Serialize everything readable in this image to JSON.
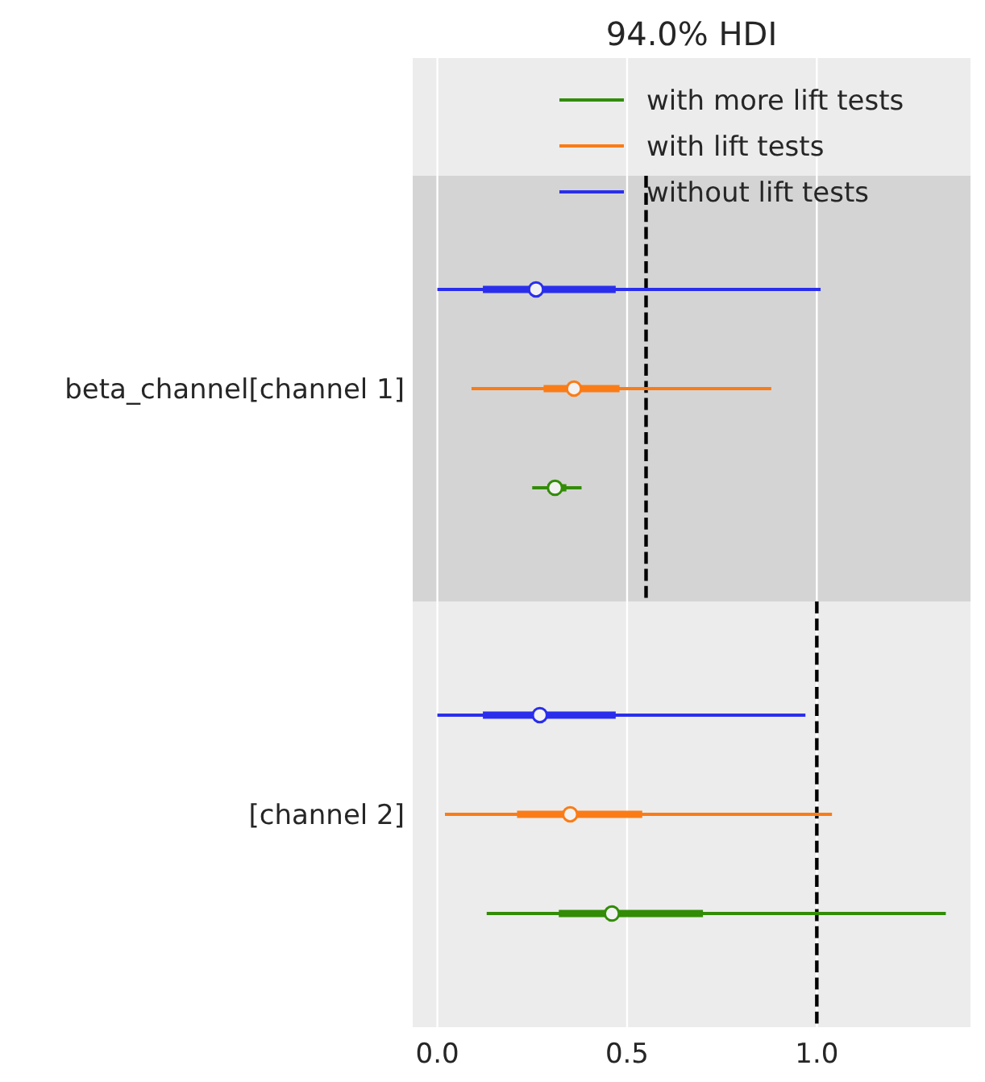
{
  "chart_data": {
    "type": "box",
    "title": "94.0% HDI",
    "orientation": "horizontal",
    "categories": [
      "beta_channel[channel 1]",
      "[channel 2]"
    ],
    "series": [
      {
        "name": "with more lift tests",
        "color": "#328c06",
        "boxes": [
          {
            "low": 0.25,
            "q1": 0.29,
            "median": 0.31,
            "q3": 0.34,
            "high": 0.38
          },
          {
            "low": 0.13,
            "q1": 0.32,
            "median": 0.46,
            "q3": 0.7,
            "high": 1.34
          }
        ]
      },
      {
        "name": "with lift tests",
        "color": "#fa7c17",
        "boxes": [
          {
            "low": 0.09,
            "q1": 0.28,
            "median": 0.36,
            "q3": 0.48,
            "high": 0.88
          },
          {
            "low": 0.02,
            "q1": 0.21,
            "median": 0.35,
            "q3": 0.54,
            "high": 1.04
          }
        ]
      },
      {
        "name": "without lift tests",
        "color": "#2a2eec",
        "boxes": [
          {
            "low": 0.0,
            "q1": 0.12,
            "median": 0.26,
            "q3": 0.47,
            "high": 1.01
          },
          {
            "low": 0.0,
            "q1": 0.12,
            "median": 0.27,
            "q3": 0.47,
            "high": 0.97
          }
        ]
      }
    ],
    "xlim": [
      -0.065,
      1.405
    ],
    "xticks": [
      {
        "value": 0,
        "label": "0.0"
      },
      0.5,
      {
        "value": 1,
        "label": "1.0"
      }
    ],
    "grid": "x",
    "legend": "top right",
    "marker": "circle",
    "ref_lines": [
      {
        "axis": "x",
        "value": 0.55,
        "line_style": "dashed",
        "color": "#000000"
      },
      {
        "axis": "x",
        "value": 1.0,
        "line_style": "dashed",
        "color": "#000000"
      }
    ],
    "bands": [
      {
        "axis": "y",
        "from": "beta_channel[channel 1]",
        "to": "beta_channel[channel 1]",
        "color": "#d4d4d4"
      }
    ]
  }
}
